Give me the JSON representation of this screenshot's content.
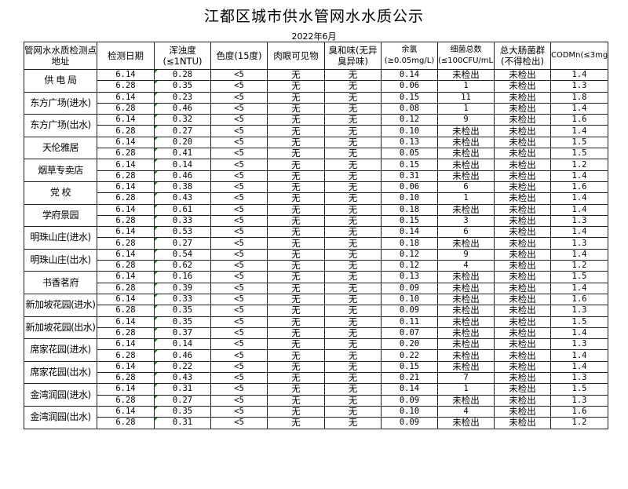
{
  "title": "江都区城市供水管网水水质公示",
  "date": "2022年6月",
  "headers": [
    "管网水水质检测点地址",
    "检测日期",
    "浑浊度(≤1NTU)",
    "色度(15度)",
    "肉眼可见物",
    "臭和味(无异臭异味)",
    "余氯(≥0.05mg/L)",
    "细菌总数(≤100CFU/mL)",
    "总大肠菌群(不得检出)",
    "CODMn(≤3mg/L)"
  ],
  "locations": [
    {
      "name": "供 电 局",
      "rows": [
        [
          "6.14",
          "0.28",
          "<5",
          "无",
          "无",
          "0.14",
          "未检出",
          "未检出",
          "1.4"
        ],
        [
          "6.28",
          "0.35",
          "<5",
          "无",
          "无",
          "0.06",
          "1",
          "未检出",
          "1.3"
        ]
      ]
    },
    {
      "name": "东方广场(进水)",
      "rows": [
        [
          "6.14",
          "0.23",
          "<5",
          "无",
          "无",
          "0.15",
          "11",
          "未检出",
          "1.8"
        ],
        [
          "6.28",
          "0.46",
          "<5",
          "无",
          "无",
          "0.08",
          "1",
          "未检出",
          "1.4"
        ]
      ]
    },
    {
      "name": "东方广场(出水)",
      "rows": [
        [
          "6.14",
          "0.32",
          "<5",
          "无",
          "无",
          "0.12",
          "9",
          "未检出",
          "1.6"
        ],
        [
          "6.28",
          "0.27",
          "<5",
          "无",
          "无",
          "0.10",
          "未检出",
          "未检出",
          "1.4"
        ]
      ]
    },
    {
      "name": "天伦雅居",
      "rows": [
        [
          "6.14",
          "0.20",
          "<5",
          "无",
          "无",
          "0.13",
          "未检出",
          "未检出",
          "1.5"
        ],
        [
          "6.28",
          "0.41",
          "<5",
          "无",
          "无",
          "0.05",
          "未检出",
          "未检出",
          "1.5"
        ]
      ]
    },
    {
      "name": "烟草专卖店",
      "rows": [
        [
          "6.14",
          "0.14",
          "<5",
          "无",
          "无",
          "0.15",
          "未检出",
          "未检出",
          "1.2"
        ],
        [
          "6.28",
          "0.46",
          "<5",
          "无",
          "无",
          "0.31",
          "未检出",
          "未检出",
          "1.4"
        ]
      ]
    },
    {
      "name": "党  校",
      "rows": [
        [
          "6.14",
          "0.38",
          "<5",
          "无",
          "无",
          "0.06",
          "6",
          "未检出",
          "1.6"
        ],
        [
          "6.28",
          "0.43",
          "<5",
          "无",
          "无",
          "0.10",
          "1",
          "未检出",
          "1.4"
        ]
      ]
    },
    {
      "name": "学府景园",
      "rows": [
        [
          "6.14",
          "0.61",
          "<5",
          "无",
          "无",
          "0.18",
          "未检出",
          "未检出",
          "1.4"
        ],
        [
          "6.28",
          "0.33",
          "<5",
          "无",
          "无",
          "0.15",
          "3",
          "未检出",
          "1.3"
        ]
      ]
    },
    {
      "name": "明珠山庄(进水)",
      "rows": [
        [
          "6.14",
          "0.53",
          "<5",
          "无",
          "无",
          "0.14",
          "6",
          "未检出",
          "1.4"
        ],
        [
          "6.28",
          "0.27",
          "<5",
          "无",
          "无",
          "0.18",
          "未检出",
          "未检出",
          "1.3"
        ]
      ]
    },
    {
      "name": "明珠山庄(出水)",
      "rows": [
        [
          "6.14",
          "0.54",
          "<5",
          "无",
          "无",
          "0.12",
          "9",
          "未检出",
          "1.4"
        ],
        [
          "6.28",
          "0.62",
          "<5",
          "无",
          "无",
          "0.12",
          "4",
          "未检出",
          "1.2"
        ]
      ]
    },
    {
      "name": "书香茗府",
      "rows": [
        [
          "6.14",
          "0.16",
          "<5",
          "无",
          "无",
          "0.13",
          "未检出",
          "未检出",
          "1.5"
        ],
        [
          "6.28",
          "0.39",
          "<5",
          "无",
          "无",
          "0.09",
          "未检出",
          "未检出",
          "1.4"
        ]
      ]
    },
    {
      "name": "新加坡花园(进水)",
      "rows": [
        [
          "6.14",
          "0.33",
          "<5",
          "无",
          "无",
          "0.10",
          "未检出",
          "未检出",
          "1.6"
        ],
        [
          "6.28",
          "0.35",
          "<5",
          "无",
          "无",
          "0.09",
          "未检出",
          "未检出",
          "1.3"
        ]
      ]
    },
    {
      "name": "新加坡花园(出水)",
      "rows": [
        [
          "6.14",
          "0.35",
          "<5",
          "无",
          "无",
          "0.11",
          "未检出",
          "未检出",
          "1.5"
        ],
        [
          "6.28",
          "0.37",
          "<5",
          "无",
          "无",
          "0.07",
          "未检出",
          "未检出",
          "1.4"
        ]
      ]
    },
    {
      "name": "席家花园(进水)",
      "rows": [
        [
          "6.14",
          "0.14",
          "<5",
          "无",
          "无",
          "0.20",
          "未检出",
          "未检出",
          "1.3"
        ],
        [
          "6.28",
          "0.46",
          "<5",
          "无",
          "无",
          "0.22",
          "未检出",
          "未检出",
          "1.4"
        ]
      ]
    },
    {
      "name": "席家花园(出水)",
      "rows": [
        [
          "6.14",
          "0.22",
          "<5",
          "无",
          "无",
          "0.15",
          "未检出",
          "未检出",
          "1.4"
        ],
        [
          "6.28",
          "0.43",
          "<5",
          "无",
          "无",
          "0.21",
          "7",
          "未检出",
          "1.3"
        ]
      ]
    },
    {
      "name": "金湾润园(进水)",
      "rows": [
        [
          "6.14",
          "0.31",
          "<5",
          "无",
          "无",
          "0.14",
          "1",
          "未检出",
          "1.5"
        ],
        [
          "6.28",
          "0.27",
          "<5",
          "无",
          "无",
          "0.09",
          "未检出",
          "未检出",
          "1.3"
        ]
      ]
    },
    {
      "name": "金湾润园(出水)",
      "rows": [
        [
          "6.14",
          "0.35",
          "<5",
          "无",
          "无",
          "0.10",
          "4",
          "未检出",
          "1.6"
        ],
        [
          "6.28",
          "0.31",
          "<5",
          "无",
          "无",
          "0.09",
          "未检出",
          "未检出",
          "1.2"
        ]
      ]
    }
  ]
}
